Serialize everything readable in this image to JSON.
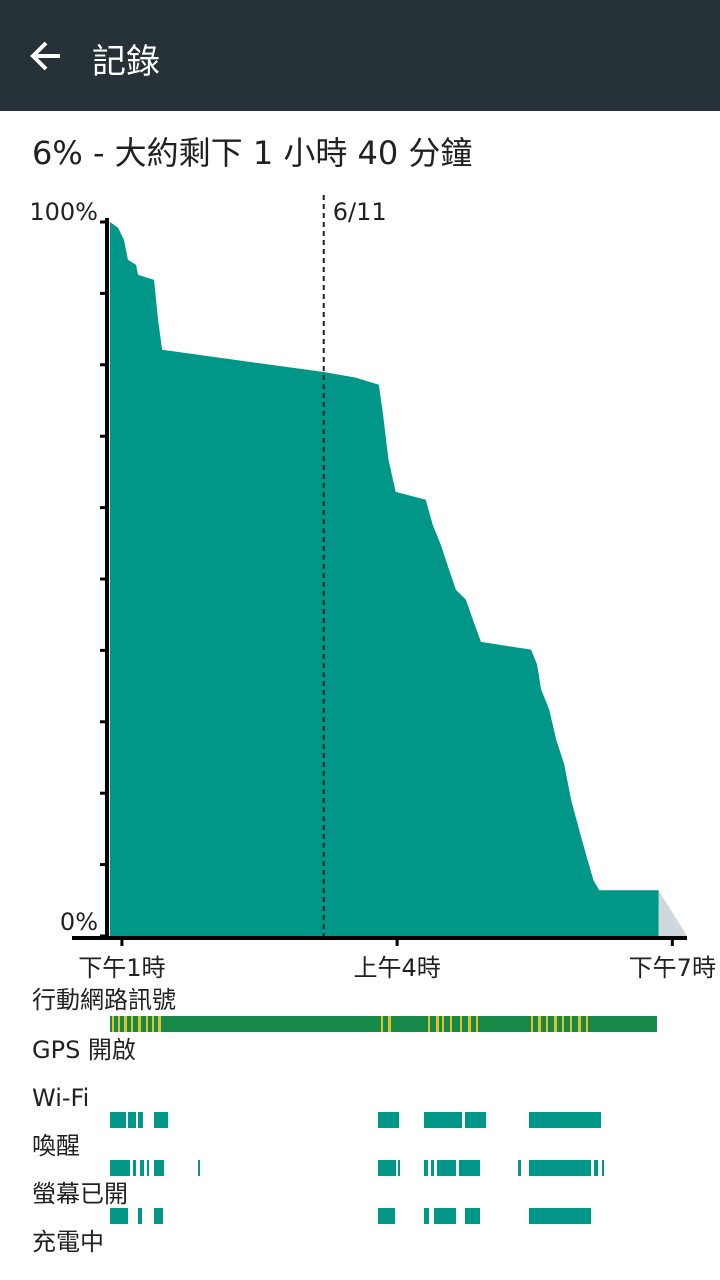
{
  "header": {
    "title": "記錄"
  },
  "summary": "6% - 大約剩下 1 小時 40 分鐘",
  "chart_data": {
    "type": "area",
    "color": "#009688",
    "x": [
      12.35,
      12.79,
      13.11,
      13.33,
      13.77,
      13.88,
      14.75,
      14.97,
      15.19,
      20.0,
      24.0,
      25.74,
      27.0,
      27.2,
      27.53,
      27.92,
      29.56,
      29.94,
      30.38,
      30.65,
      31.2,
      31.75,
      32.13,
      32.57,
      35.3,
      35.63,
      35.85,
      36.29,
      36.67,
      37.11,
      37.49,
      37.93,
      38.31,
      38.7,
      39.02,
      42.25
    ],
    "values": [
      100,
      99.2,
      97.5,
      94.7,
      94,
      92.6,
      91.9,
      86.3,
      82.1,
      80.4,
      79,
      78.2,
      77.2,
      73.7,
      66.7,
      62.2,
      61.1,
      57.6,
      54.8,
      52.7,
      48.5,
      47.1,
      44.3,
      41.2,
      40.1,
      38,
      34.5,
      31.7,
      27.5,
      24,
      19,
      14.8,
      11.3,
      7.8,
      6.4,
      6.4
    ],
    "xlim": [
      12.35,
      43.8
    ],
    "ylim": [
      0,
      100
    ],
    "yticks": [
      {
        "value": 0,
        "label": "0%"
      },
      {
        "value": 100,
        "label": "100%"
      }
    ],
    "minor_yticks": [
      10,
      20,
      30,
      40,
      50,
      60,
      70,
      80,
      90
    ],
    "xticks": [
      {
        "value": 13,
        "label": "下午1時"
      },
      {
        "value": 28,
        "label": "上午4時"
      },
      {
        "value": 43,
        "label": "下午7時"
      }
    ],
    "markers": [
      {
        "x": 24,
        "label": "6/11"
      }
    ]
  },
  "rows": [
    "行動網路訊號",
    "GPS 開啟",
    "Wi-Fi",
    "喚醒",
    "螢幕已開",
    "充電中"
  ]
}
